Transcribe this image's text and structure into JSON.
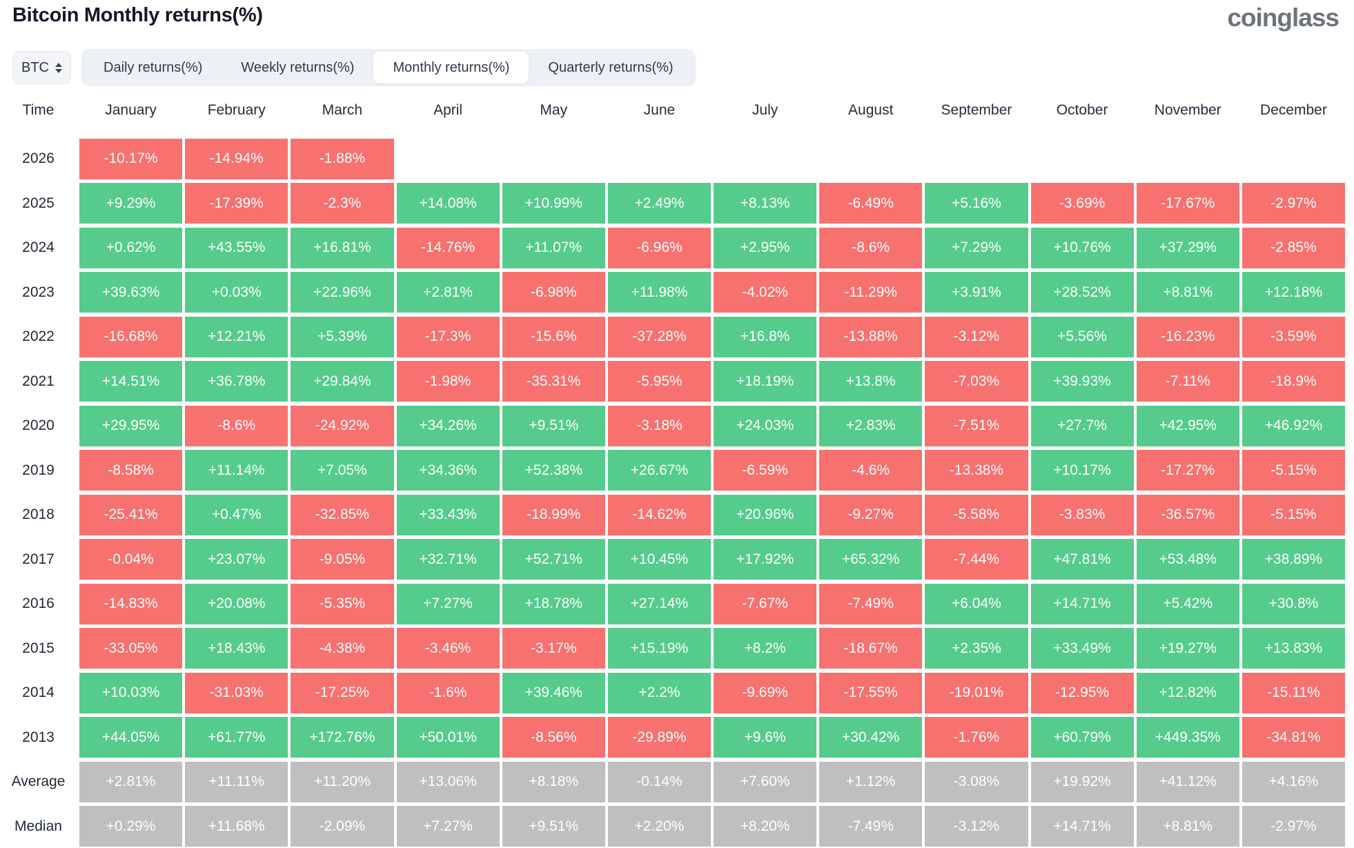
{
  "title": "Bitcoin Monthly returns(%)",
  "logo_text": "coinglass",
  "controls": {
    "symbol_select": {
      "value": "BTC",
      "icon": "updown-chevrons-icon"
    },
    "tabs": [
      {
        "label": "Daily returns(%)",
        "active": false
      },
      {
        "label": "Weekly returns(%)",
        "active": false
      },
      {
        "label": "Monthly returns(%)",
        "active": true
      },
      {
        "label": "Quarterly returns(%)",
        "active": false
      }
    ]
  },
  "colors": {
    "positive": "#55cb8c",
    "negative": "#f7716f",
    "summary": "#bfbfbf"
  },
  "chart_data": {
    "type": "heatmap",
    "title": "Bitcoin Monthly returns(%)",
    "time_column_label": "Time",
    "columns": [
      "January",
      "February",
      "March",
      "April",
      "May",
      "June",
      "July",
      "August",
      "September",
      "October",
      "November",
      "December"
    ],
    "color_coding": "positive=green, negative=red, summary rows=gray",
    "rows": [
      {
        "label": "2026",
        "type": "year",
        "values": [
          "-10.17%",
          "-14.94%",
          "-1.88%",
          "",
          "",
          "",
          "",
          "",
          "",
          "",
          "",
          ""
        ]
      },
      {
        "label": "2025",
        "type": "year",
        "values": [
          "+9.29%",
          "-17.39%",
          "-2.3%",
          "+14.08%",
          "+10.99%",
          "+2.49%",
          "+8.13%",
          "-6.49%",
          "+5.16%",
          "-3.69%",
          "-17.67%",
          "-2.97%"
        ]
      },
      {
        "label": "2024",
        "type": "year",
        "values": [
          "+0.62%",
          "+43.55%",
          "+16.81%",
          "-14.76%",
          "+11.07%",
          "-6.96%",
          "+2.95%",
          "-8.6%",
          "+7.29%",
          "+10.76%",
          "+37.29%",
          "-2.85%"
        ]
      },
      {
        "label": "2023",
        "type": "year",
        "values": [
          "+39.63%",
          "+0.03%",
          "+22.96%",
          "+2.81%",
          "-6.98%",
          "+11.98%",
          "-4.02%",
          "-11.29%",
          "+3.91%",
          "+28.52%",
          "+8.81%",
          "+12.18%"
        ]
      },
      {
        "label": "2022",
        "type": "year",
        "values": [
          "-16.68%",
          "+12.21%",
          "+5.39%",
          "-17.3%",
          "-15.6%",
          "-37.28%",
          "+16.8%",
          "-13.88%",
          "-3.12%",
          "+5.56%",
          "-16.23%",
          "-3.59%"
        ]
      },
      {
        "label": "2021",
        "type": "year",
        "values": [
          "+14.51%",
          "+36.78%",
          "+29.84%",
          "-1.98%",
          "-35.31%",
          "-5.95%",
          "+18.19%",
          "+13.8%",
          "-7.03%",
          "+39.93%",
          "-7.11%",
          "-18.9%"
        ]
      },
      {
        "label": "2020",
        "type": "year",
        "values": [
          "+29.95%",
          "-8.6%",
          "-24.92%",
          "+34.26%",
          "+9.51%",
          "-3.18%",
          "+24.03%",
          "+2.83%",
          "-7.51%",
          "+27.7%",
          "+42.95%",
          "+46.92%"
        ]
      },
      {
        "label": "2019",
        "type": "year",
        "values": [
          "-8.58%",
          "+11.14%",
          "+7.05%",
          "+34.36%",
          "+52.38%",
          "+26.67%",
          "-6.59%",
          "-4.6%",
          "-13.38%",
          "+10.17%",
          "-17.27%",
          "-5.15%"
        ]
      },
      {
        "label": "2018",
        "type": "year",
        "values": [
          "-25.41%",
          "+0.47%",
          "-32.85%",
          "+33.43%",
          "-18.99%",
          "-14.62%",
          "+20.96%",
          "-9.27%",
          "-5.58%",
          "-3.83%",
          "-36.57%",
          "-5.15%"
        ]
      },
      {
        "label": "2017",
        "type": "year",
        "values": [
          "-0.04%",
          "+23.07%",
          "-9.05%",
          "+32.71%",
          "+52.71%",
          "+10.45%",
          "+17.92%",
          "+65.32%",
          "-7.44%",
          "+47.81%",
          "+53.48%",
          "+38.89%"
        ]
      },
      {
        "label": "2016",
        "type": "year",
        "values": [
          "-14.83%",
          "+20.08%",
          "-5.35%",
          "+7.27%",
          "+18.78%",
          "+27.14%",
          "-7.67%",
          "-7.49%",
          "+6.04%",
          "+14.71%",
          "+5.42%",
          "+30.8%"
        ]
      },
      {
        "label": "2015",
        "type": "year",
        "values": [
          "-33.05%",
          "+18.43%",
          "-4.38%",
          "-3.46%",
          "-3.17%",
          "+15.19%",
          "+8.2%",
          "-18.67%",
          "+2.35%",
          "+33.49%",
          "+19.27%",
          "+13.83%"
        ]
      },
      {
        "label": "2014",
        "type": "year",
        "values": [
          "+10.03%",
          "-31.03%",
          "-17.25%",
          "-1.6%",
          "+39.46%",
          "+2.2%",
          "-9.69%",
          "-17.55%",
          "-19.01%",
          "-12.95%",
          "+12.82%",
          "-15.11%"
        ]
      },
      {
        "label": "2013",
        "type": "year",
        "values": [
          "+44.05%",
          "+61.77%",
          "+172.76%",
          "+50.01%",
          "-8.56%",
          "-29.89%",
          "+9.6%",
          "+30.42%",
          "-1.76%",
          "+60.79%",
          "+449.35%",
          "-34.81%"
        ]
      },
      {
        "label": "Average",
        "type": "summary",
        "values": [
          "+2.81%",
          "+11.11%",
          "+11.20%",
          "+13.06%",
          "+8.18%",
          "-0.14%",
          "+7.60%",
          "+1.12%",
          "-3.08%",
          "+19.92%",
          "+41.12%",
          "+4.16%"
        ]
      },
      {
        "label": "Median",
        "type": "summary",
        "values": [
          "+0.29%",
          "+11.68%",
          "-2.09%",
          "+7.27%",
          "+9.51%",
          "+2.20%",
          "+8.20%",
          "-7.49%",
          "-3.12%",
          "+14.71%",
          "+8.81%",
          "-2.97%"
        ]
      }
    ]
  }
}
